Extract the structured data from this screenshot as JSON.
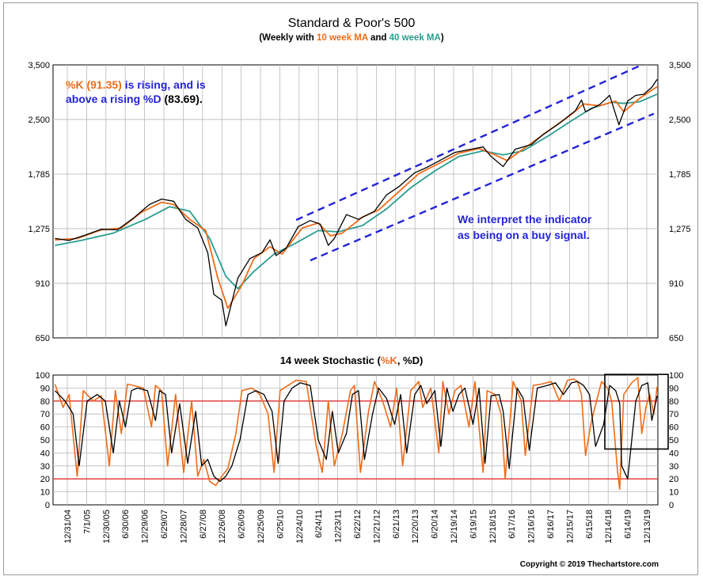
{
  "chart_data": [
    {
      "type": "line",
      "title": "Standard & Poor's 500",
      "subtitle_parts": [
        {
          "text": "(Weekly with ",
          "color": "#000000"
        },
        {
          "text": "10 week MA",
          "color": "#ef6c1a"
        },
        {
          "text": " and ",
          "color": "#000000"
        },
        {
          "text": "40 week MA",
          "color": "#2a9d8f"
        },
        {
          "text": ")",
          "color": "#000000"
        }
      ],
      "scale": "log",
      "ylim": [
        650,
        3500
      ],
      "y_ticks": [
        650,
        910,
        1275,
        1785,
        2500,
        3500
      ],
      "y_tick_labels": [
        "650",
        "910",
        "1,275",
        "1,785",
        "2,500",
        "3,500"
      ],
      "x_range": [
        2004.9,
        2019.95
      ],
      "grid": true,
      "colors": {
        "price": "#000000",
        "ma10": "#ef6c1a",
        "ma40": "#2a9d8f",
        "channel": "#2323d9"
      },
      "series": [
        {
          "name": "",
          "x": [
            2004.95,
            2005.3,
            2005.7,
            2006.1,
            2006.5,
            2006.9,
            2007.3,
            2007.6,
            2007.9,
            2008.2,
            2008.5,
            2008.75,
            2008.9,
            2009.1,
            2009.2,
            2009.5,
            2009.8,
            2010.1,
            2010.3,
            2010.45,
            2010.7,
            2011.0,
            2011.3,
            2011.55,
            2011.75,
            2011.9,
            2012.2,
            2012.5,
            2012.9,
            2013.2,
            2013.5,
            2013.9,
            2014.2,
            2014.6,
            2014.9,
            2015.3,
            2015.6,
            2015.8,
            2016.1,
            2016.4,
            2016.8,
            2017.1,
            2017.5,
            2017.9,
            2018.05,
            2018.15,
            2018.5,
            2018.75,
            2018.98,
            2019.2,
            2019.4,
            2019.6,
            2019.8,
            2019.93
          ],
          "values": [
            1200,
            1185,
            1225,
            1270,
            1265,
            1360,
            1480,
            1530,
            1510,
            1350,
            1280,
            1100,
            850,
            820,
            700,
            940,
            1060,
            1100,
            1190,
            1080,
            1130,
            1290,
            1340,
            1310,
            1150,
            1200,
            1390,
            1350,
            1420,
            1570,
            1650,
            1800,
            1860,
            1960,
            2040,
            2080,
            2110,
            1990,
            1870,
            2080,
            2140,
            2280,
            2440,
            2640,
            2820,
            2620,
            2740,
            2900,
            2420,
            2800,
            2900,
            2920,
            3050,
            3200
          ]
        },
        {
          "name": "10 week MA",
          "x": [
            2004.95,
            2005.5,
            2006.1,
            2006.6,
            2007.1,
            2007.6,
            2007.9,
            2008.3,
            2008.7,
            2009.0,
            2009.25,
            2009.6,
            2009.9,
            2010.3,
            2010.6,
            2011.1,
            2011.5,
            2011.8,
            2012.1,
            2012.6,
            2013.0,
            2013.5,
            2014.0,
            2014.6,
            2015.0,
            2015.5,
            2015.9,
            2016.2,
            2016.7,
            2017.2,
            2017.8,
            2018.1,
            2018.5,
            2018.9,
            2019.1,
            2019.5,
            2019.93
          ],
          "values": [
            1190,
            1200,
            1265,
            1280,
            1410,
            1500,
            1480,
            1350,
            1260,
            940,
            780,
            900,
            1060,
            1140,
            1090,
            1280,
            1320,
            1220,
            1240,
            1370,
            1430,
            1600,
            1790,
            1930,
            2030,
            2090,
            2010,
            1940,
            2120,
            2320,
            2580,
            2750,
            2720,
            2800,
            2620,
            2850,
            3060
          ]
        },
        {
          "name": "40 week MA",
          "x": [
            2004.95,
            2005.6,
            2006.4,
            2007.2,
            2007.8,
            2008.3,
            2008.8,
            2009.2,
            2009.5,
            2009.9,
            2010.4,
            2010.9,
            2011.5,
            2012.0,
            2012.6,
            2013.2,
            2013.8,
            2014.4,
            2015.0,
            2015.6,
            2016.1,
            2016.6,
            2017.2,
            2017.8,
            2018.3,
            2018.8,
            2019.1,
            2019.5,
            2019.93
          ],
          "values": [
            1150,
            1185,
            1240,
            1350,
            1460,
            1420,
            1200,
            950,
            880,
            980,
            1090,
            1160,
            1260,
            1250,
            1300,
            1440,
            1640,
            1820,
            1990,
            2060,
            2010,
            2060,
            2250,
            2480,
            2680,
            2780,
            2760,
            2790,
            2920
          ]
        }
      ],
      "channel_lines": [
        {
          "x": [
            2010.95,
            2019.55
          ],
          "values": [
            1345,
            3500
          ]
        },
        {
          "x": [
            2011.3,
            2019.85
          ],
          "values": [
            1048,
            2590
          ]
        }
      ],
      "annotations": [
        {
          "parts": [
            {
              "text": "%K (91.35)",
              "color": "#ef6c1a"
            },
            {
              "text": " is rising, and is",
              "color": "#2323d9"
            }
          ]
        },
        {
          "parts": [
            {
              "text": "above a rising ",
              "color": "#2323d9"
            },
            {
              "text": "%D",
              "color": "#2323d9"
            },
            {
              "text": " (83.69).",
              "color": "#000000"
            }
          ]
        },
        {
          "parts": [
            {
              "text": "We interpret the indicator",
              "color": "#2323d9"
            }
          ]
        },
        {
          "parts": [
            {
              "text": "as being on a buy signal.",
              "color": "#2323d9"
            }
          ]
        }
      ]
    },
    {
      "type": "line",
      "title_parts": [
        {
          "text": "14 week Stochastic (",
          "color": "#000000"
        },
        {
          "text": "%K",
          "color": "#ef6c1a"
        },
        {
          "text": ", %D)",
          "color": "#000000"
        }
      ],
      "ylim": [
        0,
        100
      ],
      "y_ticks": [
        0,
        10,
        20,
        30,
        40,
        50,
        60,
        70,
        80,
        90,
        100
      ],
      "y_tick_labels": [
        "0",
        "10",
        "20",
        "30",
        "40",
        "50",
        "60",
        "70",
        "80",
        "90",
        "100"
      ],
      "reference_lines": [
        20,
        80
      ],
      "reference_color": "#e03030",
      "x_range": [
        2004.9,
        2019.95
      ],
      "colors": {
        "k": "#ef6c1a",
        "d": "#000000"
      },
      "series": [
        {
          "name": "%K",
          "x": [
            2004.95,
            2005.15,
            2005.3,
            2005.5,
            2005.65,
            2005.9,
            2006.1,
            2006.3,
            2006.45,
            2006.6,
            2006.75,
            2006.9,
            2007.15,
            2007.35,
            2007.45,
            2007.6,
            2007.75,
            2007.95,
            2008.15,
            2008.35,
            2008.5,
            2008.65,
            2008.8,
            2008.95,
            2009.1,
            2009.25,
            2009.45,
            2009.6,
            2009.85,
            2010.05,
            2010.25,
            2010.4,
            2010.55,
            2010.75,
            2010.95,
            2011.2,
            2011.45,
            2011.6,
            2011.75,
            2011.9,
            2012.1,
            2012.3,
            2012.4,
            2012.55,
            2012.75,
            2012.9,
            2013.1,
            2013.3,
            2013.45,
            2013.6,
            2013.8,
            2014.0,
            2014.1,
            2014.3,
            2014.5,
            2014.6,
            2014.75,
            2014.9,
            2015.05,
            2015.25,
            2015.4,
            2015.6,
            2015.7,
            2015.9,
            2016.05,
            2016.15,
            2016.35,
            2016.55,
            2016.65,
            2016.85,
            2017.05,
            2017.3,
            2017.5,
            2017.7,
            2017.85,
            2017.95,
            2018.05,
            2018.15,
            2018.3,
            2018.55,
            2018.7,
            2018.8,
            2018.95,
            2019.0,
            2019.1,
            2019.3,
            2019.45,
            2019.55,
            2019.65,
            2019.75,
            2019.85,
            2019.93
          ],
          "values": [
            93,
            75,
            85,
            22,
            88,
            80,
            84,
            30,
            88,
            55,
            93,
            92,
            90,
            60,
            92,
            88,
            30,
            85,
            25,
            80,
            22,
            35,
            18,
            15,
            22,
            28,
            55,
            88,
            90,
            85,
            70,
            25,
            88,
            92,
            96,
            95,
            45,
            25,
            80,
            30,
            55,
            88,
            92,
            25,
            72,
            95,
            80,
            60,
            90,
            30,
            88,
            95,
            75,
            90,
            40,
            95,
            70,
            88,
            92,
            60,
            95,
            25,
            88,
            85,
            70,
            20,
            95,
            80,
            38,
            92,
            93,
            95,
            80,
            96,
            97,
            95,
            85,
            38,
            65,
            95,
            90,
            80,
            25,
            12,
            85,
            94,
            98,
            55,
            75,
            85,
            70,
            91
          ]
        },
        {
          "name": "%D",
          "x": [
            2004.95,
            2005.2,
            2005.4,
            2005.55,
            2005.75,
            2006.0,
            2006.2,
            2006.4,
            2006.55,
            2006.7,
            2006.85,
            2007.0,
            2007.25,
            2007.45,
            2007.55,
            2007.7,
            2007.85,
            2008.05,
            2008.25,
            2008.45,
            2008.6,
            2008.75,
            2008.9,
            2009.05,
            2009.2,
            2009.35,
            2009.55,
            2009.75,
            2009.95,
            2010.15,
            2010.35,
            2010.5,
            2010.65,
            2010.85,
            2011.05,
            2011.3,
            2011.5,
            2011.7,
            2011.85,
            2012.0,
            2012.2,
            2012.35,
            2012.5,
            2012.65,
            2012.85,
            2013.0,
            2013.2,
            2013.4,
            2013.55,
            2013.7,
            2013.9,
            2014.05,
            2014.2,
            2014.4,
            2014.55,
            2014.7,
            2014.85,
            2015.0,
            2015.15,
            2015.35,
            2015.5,
            2015.65,
            2015.8,
            2016.0,
            2016.1,
            2016.25,
            2016.45,
            2016.6,
            2016.75,
            2016.95,
            2017.2,
            2017.4,
            2017.6,
            2017.8,
            2017.95,
            2018.1,
            2018.25,
            2018.4,
            2018.6,
            2018.75,
            2018.9,
            2019.0,
            2019.05,
            2019.2,
            2019.4,
            2019.55,
            2019.7,
            2019.8,
            2019.93
          ],
          "values": [
            88,
            80,
            70,
            30,
            80,
            85,
            80,
            40,
            80,
            60,
            88,
            90,
            88,
            65,
            88,
            85,
            40,
            78,
            32,
            72,
            30,
            35,
            22,
            18,
            22,
            30,
            50,
            85,
            88,
            85,
            72,
            32,
            80,
            90,
            94,
            92,
            50,
            35,
            72,
            40,
            55,
            85,
            88,
            35,
            70,
            90,
            82,
            62,
            85,
            40,
            85,
            92,
            78,
            88,
            45,
            90,
            72,
            85,
            90,
            62,
            90,
            32,
            84,
            85,
            72,
            28,
            90,
            82,
            42,
            90,
            92,
            94,
            85,
            94,
            95,
            92,
            85,
            45,
            62,
            92,
            88,
            78,
            30,
            20,
            80,
            92,
            94,
            65,
            84
          ]
        }
      ]
    }
  ],
  "x_tick_labels": [
    "12/31/04",
    "7/1/05",
    "12/30/05",
    "6/30/06",
    "12/29/06",
    "6/29/07",
    "12/28/07",
    "6/27/08",
    "12/26/08",
    "6/26/09",
    "12/25/09",
    "6/25/10",
    "12/24/10",
    "6/24/11",
    "12/23/11",
    "6/22/12",
    "12/21/12",
    "6/21/13",
    "12/20/13",
    "6/20/14",
    "12/19/14",
    "6/19/15",
    "12/18/15",
    "6/17/16",
    "12/16/16",
    "6/16/17",
    "12/15/17",
    "6/15/18",
    "12/14/18",
    "6/14/19",
    "12/13/19"
  ],
  "copyright": "Copyright © 2019 Thechartstore.com"
}
